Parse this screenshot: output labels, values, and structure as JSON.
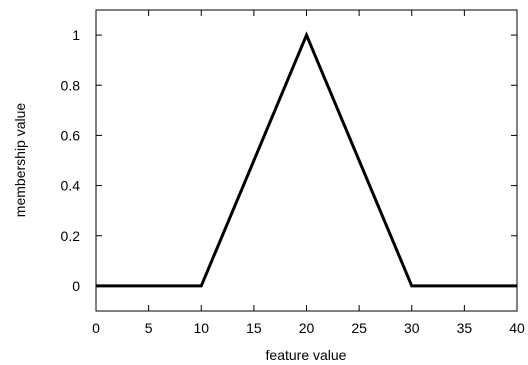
{
  "chart_data": {
    "type": "line",
    "title": "",
    "xlabel": "feature value",
    "ylabel": "membership value",
    "xlim": [
      0,
      40
    ],
    "ylim": [
      -0.1,
      1.1
    ],
    "xticks": [
      0,
      5,
      10,
      15,
      20,
      25,
      30,
      35,
      40
    ],
    "yticks": [
      0,
      0.2,
      0.4,
      0.6,
      0.8,
      1
    ],
    "grid": false,
    "legend": "none",
    "series": [
      {
        "color": "#000000",
        "x": [
          0,
          10,
          20,
          30,
          40
        ],
        "y": [
          0,
          0,
          1,
          0,
          0
        ]
      }
    ]
  }
}
